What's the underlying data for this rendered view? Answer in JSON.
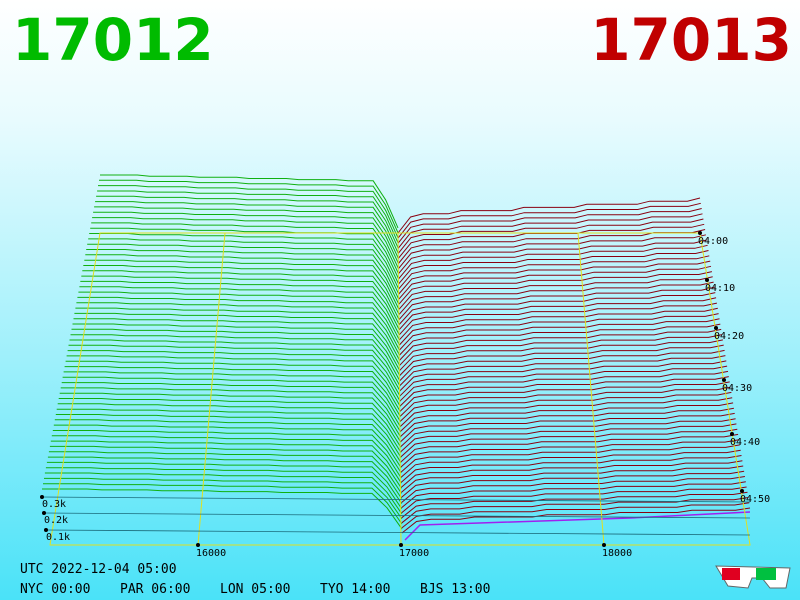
{
  "header": {
    "bid": "17012",
    "ask": "17013"
  },
  "axes": {
    "price_labels": [
      "16000",
      "17000",
      "18000"
    ],
    "time_labels": [
      "04:00",
      "04:10",
      "04:20",
      "04:30",
      "04:40",
      "04:50"
    ],
    "volume_labels": [
      "0.3k",
      "0.2k",
      "0.1k"
    ]
  },
  "footer": {
    "utc": "UTC 2022-12-04 05:00",
    "zones": [
      "NYC 00:00",
      "PAR 06:00",
      "LON 05:00",
      "TYO 14:00",
      "BJS 13:00"
    ]
  }
}
